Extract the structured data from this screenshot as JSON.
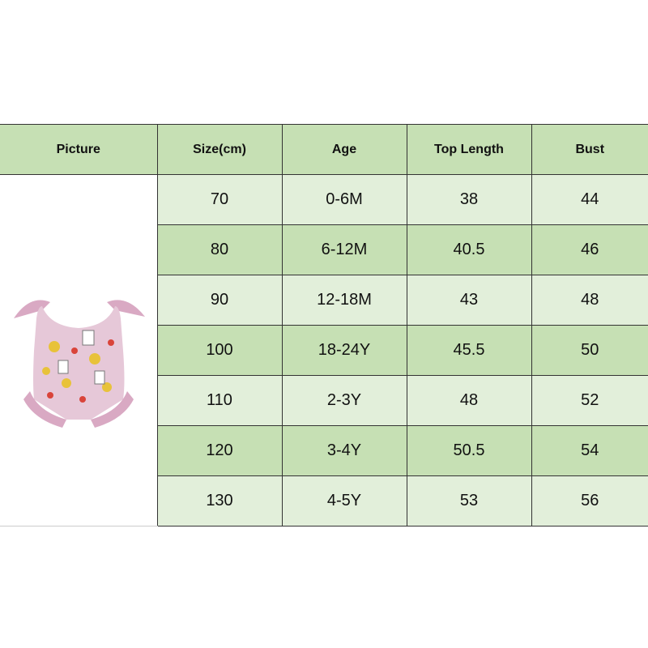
{
  "headers": [
    "Picture",
    "Size(cm)",
    "Age",
    "Top Length",
    "Bust"
  ],
  "rows": [
    {
      "size": "70",
      "age": "0-6M",
      "top_length": "38",
      "bust": "44"
    },
    {
      "size": "80",
      "age": "6-12M",
      "top_length": "40.5",
      "bust": "46"
    },
    {
      "size": "90",
      "age": "12-18M",
      "top_length": "43",
      "bust": "48"
    },
    {
      "size": "100",
      "age": "18-24Y",
      "top_length": "45.5",
      "bust": "50"
    },
    {
      "size": "110",
      "age": "2-3Y",
      "top_length": "48",
      "bust": "52"
    },
    {
      "size": "120",
      "age": "3-4Y",
      "top_length": "50.5",
      "bust": "54"
    },
    {
      "size": "130",
      "age": "4-5Y",
      "top_length": "53",
      "bust": "56"
    }
  ],
  "colors": {
    "header": "#c6e0b4",
    "row_light": "#e2efda",
    "row_dark": "#c6e0b4",
    "swimsuit": "#e6c8d8",
    "ruffle": "#d9a9c3"
  }
}
